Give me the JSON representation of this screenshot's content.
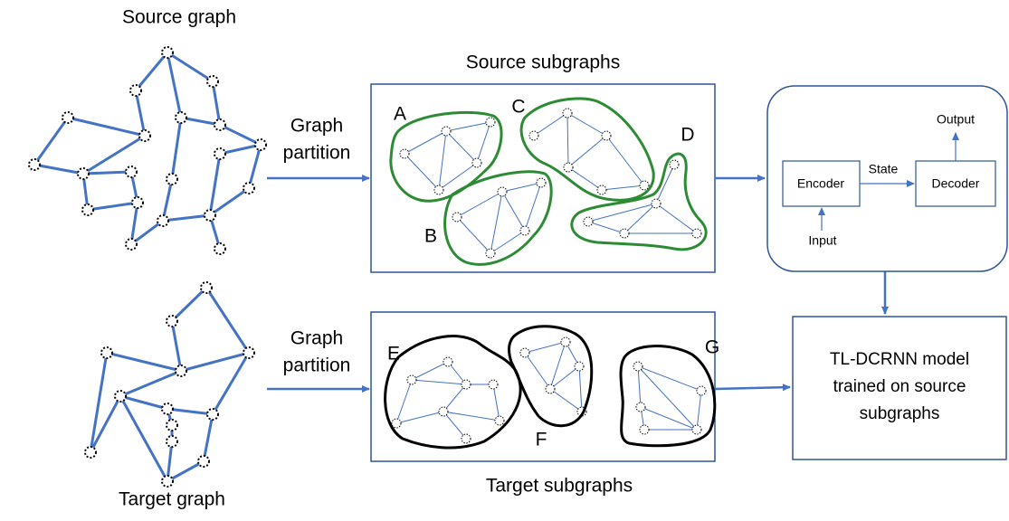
{
  "graphs": {
    "source": "Source graph",
    "target": "Target graph"
  },
  "partition": {
    "top": [
      "Graph",
      "partition"
    ],
    "bottom": [
      "Graph",
      "partition"
    ]
  },
  "subgraphs": {
    "source": {
      "title": "Source subgraphs",
      "labels": [
        "A",
        "B",
        "C",
        "D"
      ]
    },
    "target": {
      "title": "Target subgraphs",
      "labels": [
        "E",
        "F",
        "G"
      ]
    }
  },
  "model": {
    "encoder": "Encoder",
    "decoder": "Decoder",
    "state": "State",
    "input": "Input",
    "output": "Output"
  },
  "result": {
    "lines": [
      "TL-DCRNN model",
      "trained on source",
      "subgraphs"
    ]
  }
}
